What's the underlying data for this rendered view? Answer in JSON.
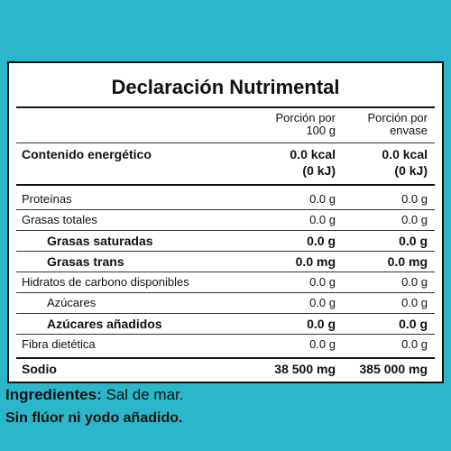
{
  "title": "Declaración Nutrimental",
  "header": {
    "col1": [
      "Porción por",
      "100 g"
    ],
    "col2": [
      "Porción por",
      "envase"
    ]
  },
  "energy": {
    "label": "Contenido energético",
    "col1": [
      "0.0 kcal",
      "(0 kJ)"
    ],
    "col2": [
      "0.0 kcal",
      "(0 kJ)"
    ]
  },
  "rows": [
    {
      "label": "Proteínas",
      "col1": "0.0 g",
      "col2": "0.0 g"
    },
    {
      "label": "Grasas totales",
      "col1": "0.0 g",
      "col2": "0.0 g"
    },
    {
      "label": "Grasas saturadas",
      "col1": "0.0 g",
      "col2": "0.0 g"
    },
    {
      "label": "Grasas trans",
      "col1": "0.0 mg",
      "col2": "0.0 mg"
    },
    {
      "label": "Hidratos de carbono disponibles",
      "col1": "0.0 g",
      "col2": "0.0 g"
    },
    {
      "label": "Azúcares",
      "col1": "0.0 g",
      "col2": "0.0 g"
    },
    {
      "label": "Azúcares añadidos",
      "col1": "0.0 g",
      "col2": "0.0 g"
    },
    {
      "label": "Fibra dietética",
      "col1": "0.0 g",
      "col2": "0.0 g"
    },
    {
      "label": "Sodio",
      "col1": "38 500 mg",
      "col2": "385 000 mg"
    }
  ],
  "ingredients": {
    "label": "Ingredientes:",
    "text": "Sal de mar."
  },
  "note": "Sin flúor ni yodo añadido."
}
